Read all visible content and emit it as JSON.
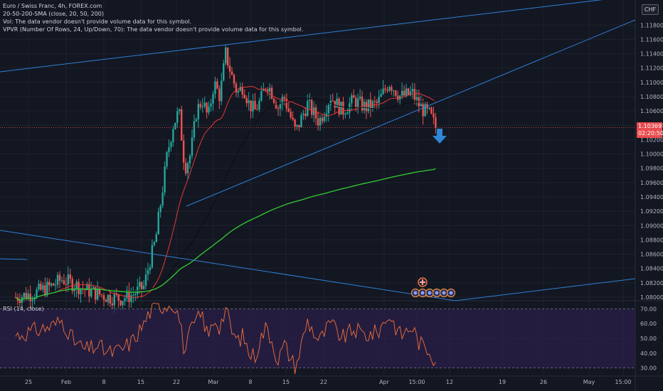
{
  "legend": {
    "symbol": "Euro / Swiss Franc, 4h, FOREX.com",
    "sma": "20-50-200-SMA (close, 20, 50, 200)",
    "vol": "Vol: The data vendor doesn't provide volume data for this symbol.",
    "vpvr": "VPVR (Number Of Rows, 24, Up/Down, 70): The data vendor doesn't provide volume data for this symbol."
  },
  "rsi_label": "RSI (14, close)",
  "currency": "CHF",
  "last_price": {
    "value": "1.10369",
    "countdown": "02:20:50"
  },
  "colors": {
    "background": "#131722",
    "candle_up": "#26a69a",
    "candle_down": "#ef5350",
    "sma20": "#e53935",
    "sma50": "#0b0e14",
    "sma200": "#33cc33",
    "trendline": "#2f7fd6",
    "rsi_line": "#f0703a",
    "rsi_band": "#2b1f4a",
    "arrow": "#2f86d6"
  },
  "chart_data": [
    {
      "type": "candlestick",
      "title": "Euro / Swiss Franc, 4h, FOREX.com",
      "ylim": [
        1.0795,
        1.1215
      ],
      "yticks": [
        "1.11800",
        "1.11600",
        "1.11400",
        "1.11200",
        "1.11000",
        "1.10800",
        "1.10600",
        "1.10400",
        "1.10200",
        "1.10000",
        "1.09800",
        "1.09600",
        "1.09400",
        "1.09200",
        "1.09000",
        "1.08800",
        "1.08600",
        "1.08400",
        "1.08200",
        "1.08000"
      ],
      "xticks": [
        "25",
        "Feb",
        "8",
        "15",
        "22",
        "Mar",
        "8",
        "15",
        "22",
        "Apr",
        "15:00",
        "12",
        "19",
        "26",
        "May",
        "15:00"
      ],
      "price_path": {
        "x_days": [
          0,
          3,
          6,
          8,
          10,
          12,
          14,
          16,
          18,
          20,
          22,
          23,
          24,
          25,
          26,
          27,
          28,
          29,
          30,
          31,
          32,
          33,
          34,
          35,
          36,
          37,
          38,
          39,
          40,
          41,
          42,
          43,
          44,
          45,
          46,
          48,
          50,
          52,
          54,
          56,
          58,
          60,
          62,
          64,
          66,
          68,
          69,
          70,
          71,
          72
        ],
        "close": [
          1.08,
          1.0805,
          1.0815,
          1.0825,
          1.0818,
          1.081,
          1.0805,
          1.08,
          1.0798,
          1.0803,
          1.0815,
          1.085,
          1.088,
          1.094,
          1.1,
          1.104,
          1.106,
          1.098,
          1.1,
          1.106,
          1.1075,
          1.105,
          1.11,
          1.108,
          1.114,
          1.111,
          1.1085,
          1.1095,
          1.107,
          1.106,
          1.1075,
          1.11,
          1.1085,
          1.1065,
          1.108,
          1.103,
          1.107,
          1.1045,
          1.108,
          1.106,
          1.1075,
          1.1065,
          1.107,
          1.11,
          1.108,
          1.1085,
          1.107,
          1.106,
          1.1055,
          1.1037
        ]
      },
      "sma_series": [
        {
          "name": "SMA 20"
        },
        {
          "name": "SMA 50"
        },
        {
          "name": "SMA 200"
        }
      ],
      "last_price": 1.10369,
      "annotations": [
        "trendlines",
        "down-arrow",
        "event-markers"
      ]
    },
    {
      "type": "line",
      "title": "RSI (14, close)",
      "ylim": [
        25,
        75
      ],
      "yticks": [
        70,
        60,
        50,
        40,
        30
      ],
      "bands": [
        30,
        70
      ],
      "x_days": [
        0,
        3,
        6,
        8,
        10,
        12,
        14,
        16,
        18,
        20,
        22,
        23,
        24,
        25,
        26,
        27,
        28,
        29,
        30,
        31,
        32,
        33,
        34,
        35,
        36,
        37,
        38,
        39,
        40,
        41,
        42,
        43,
        44,
        45,
        46,
        48,
        50,
        52,
        54,
        56,
        58,
        60,
        62,
        64,
        66,
        68,
        69,
        70,
        71,
        72
      ],
      "values": [
        52,
        55,
        58,
        62,
        48,
        42,
        45,
        40,
        42,
        48,
        60,
        68,
        70,
        72,
        73,
        74,
        65,
        40,
        55,
        62,
        66,
        50,
        64,
        58,
        70,
        55,
        48,
        52,
        40,
        38,
        50,
        58,
        48,
        35,
        46,
        30,
        62,
        48,
        60,
        50,
        56,
        52,
        54,
        66,
        52,
        58,
        48,
        44,
        42,
        35
      ]
    }
  ]
}
